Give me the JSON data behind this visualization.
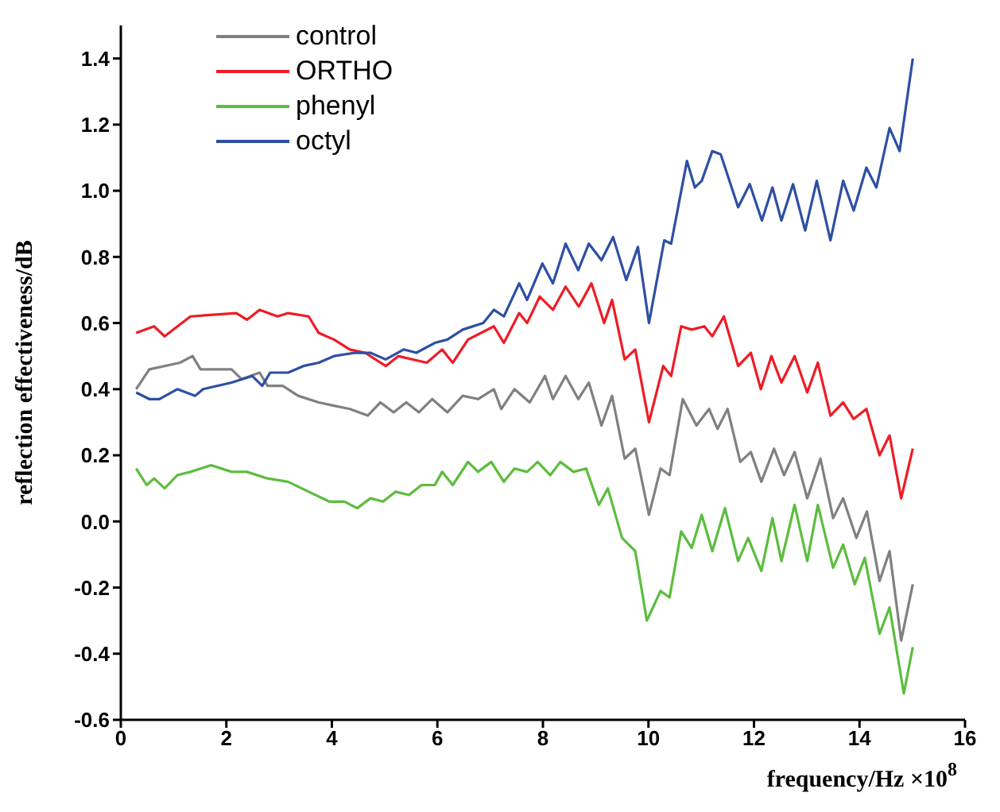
{
  "chart_data": {
    "type": "line",
    "xlabel": "frequency/Hz ×10$^{8}$",
    "ylabel": "reflection effectiveness/dB",
    "xlim": [
      0,
      16
    ],
    "xticks": [
      0,
      2,
      4,
      6,
      8,
      10,
      12,
      14,
      16
    ],
    "ylim": [
      -0.6,
      1.5
    ],
    "yticks": [
      {
        "value": -0.6,
        "label": "-0.6"
      },
      {
        "value": -0.4,
        "label": "-0.4"
      },
      {
        "value": -0.2,
        "label": "-0.2"
      },
      {
        "value": 0,
        "label": "0.0"
      },
      {
        "value": 0.2,
        "label": "0.2"
      },
      {
        "value": 0.4,
        "label": "0.4"
      },
      {
        "value": 0.6,
        "label": "0.6"
      },
      {
        "value": 0.8,
        "label": "0.8"
      },
      {
        "value": 1,
        "label": "1.0"
      },
      {
        "value": 1.2,
        "label": "1.2"
      },
      {
        "value": 1.4,
        "label": "1.4"
      }
    ],
    "grid": false,
    "legend": "top left",
    "marker": "none",
    "line_style": "solid",
    "series": [
      {
        "name": "control",
        "color": "#808080",
        "x": [
          0.29,
          0.54,
          1.12,
          1.36,
          1.51,
          2.1,
          2.29,
          2.63,
          2.78,
          3.07,
          3.36,
          3.75,
          4.04,
          4.34,
          4.68,
          4.92,
          5.17,
          5.41,
          5.65,
          5.9,
          6.19,
          6.48,
          6.77,
          7.07,
          7.21,
          7.46,
          7.75,
          8.04,
          8.19,
          8.43,
          8.67,
          8.87,
          9.11,
          9.31,
          9.55,
          9.75,
          10.01,
          10.23,
          10.4,
          10.65,
          10.91,
          11.15,
          11.31,
          11.5,
          11.74,
          11.94,
          12.14,
          12.38,
          12.57,
          12.77,
          13.01,
          13.26,
          13.5,
          13.69,
          13.94,
          14.14,
          14.38,
          14.57,
          14.79,
          15.01
        ],
        "values": [
          0.4,
          0.46,
          0.48,
          0.5,
          0.46,
          0.46,
          0.43,
          0.45,
          0.41,
          0.41,
          0.38,
          0.36,
          0.35,
          0.34,
          0.32,
          0.36,
          0.33,
          0.36,
          0.33,
          0.37,
          0.33,
          0.38,
          0.37,
          0.4,
          0.34,
          0.4,
          0.36,
          0.44,
          0.37,
          0.44,
          0.37,
          0.42,
          0.29,
          0.38,
          0.19,
          0.22,
          0.02,
          0.16,
          0.14,
          0.37,
          0.29,
          0.34,
          0.28,
          0.34,
          0.18,
          0.21,
          0.12,
          0.22,
          0.14,
          0.21,
          0.07,
          0.19,
          0.01,
          0.07,
          -0.05,
          0.03,
          -0.18,
          -0.09,
          -0.36,
          -0.19
        ]
      },
      {
        "name": "ORTHO",
        "color": "#ee1c25",
        "x": [
          0.29,
          0.63,
          0.83,
          1.32,
          2.19,
          2.39,
          2.63,
          2.97,
          3.17,
          3.56,
          3.75,
          4.04,
          4.34,
          4.63,
          5.02,
          5.26,
          5.8,
          6.09,
          6.29,
          6.58,
          7.07,
          7.26,
          7.55,
          7.7,
          7.94,
          8.19,
          8.43,
          8.68,
          8.92,
          9.16,
          9.31,
          9.55,
          9.75,
          10.01,
          10.28,
          10.43,
          10.62,
          10.82,
          11.06,
          11.21,
          11.43,
          11.7,
          11.94,
          12.13,
          12.33,
          12.52,
          12.77,
          13.01,
          13.21,
          13.45,
          13.69,
          13.89,
          14.13,
          14.38,
          14.57,
          14.79,
          15.01
        ],
        "values": [
          0.57,
          0.59,
          0.56,
          0.62,
          0.63,
          0.61,
          0.64,
          0.62,
          0.63,
          0.62,
          0.57,
          0.55,
          0.52,
          0.51,
          0.47,
          0.5,
          0.48,
          0.52,
          0.48,
          0.55,
          0.59,
          0.54,
          0.63,
          0.6,
          0.68,
          0.64,
          0.71,
          0.65,
          0.72,
          0.6,
          0.67,
          0.49,
          0.52,
          0.3,
          0.47,
          0.44,
          0.59,
          0.58,
          0.59,
          0.56,
          0.62,
          0.47,
          0.51,
          0.4,
          0.5,
          0.42,
          0.5,
          0.39,
          0.48,
          0.32,
          0.36,
          0.31,
          0.34,
          0.2,
          0.26,
          0.07,
          0.22
        ]
      },
      {
        "name": "phenyl",
        "color": "#5cbd3e",
        "x": [
          0.29,
          0.49,
          0.63,
          0.83,
          1.07,
          1.32,
          1.71,
          2.1,
          2.39,
          2.78,
          3.17,
          3.56,
          3.95,
          4.24,
          4.48,
          4.73,
          4.97,
          5.21,
          5.46,
          5.7,
          5.95,
          6.09,
          6.29,
          6.58,
          6.77,
          7.02,
          7.26,
          7.46,
          7.7,
          7.9,
          8.14,
          8.33,
          8.58,
          8.82,
          9.06,
          9.23,
          9.5,
          9.75,
          9.97,
          10.23,
          10.4,
          10.62,
          10.82,
          11.01,
          11.21,
          11.45,
          11.7,
          11.89,
          12.14,
          12.35,
          12.52,
          12.77,
          13.01,
          13.21,
          13.5,
          13.69,
          13.91,
          14.1,
          14.38,
          14.57,
          14.84,
          15.01
        ],
        "values": [
          0.16,
          0.11,
          0.13,
          0.1,
          0.14,
          0.15,
          0.17,
          0.15,
          0.15,
          0.13,
          0.12,
          0.09,
          0.06,
          0.06,
          0.04,
          0.07,
          0.06,
          0.09,
          0.08,
          0.11,
          0.11,
          0.15,
          0.11,
          0.18,
          0.15,
          0.18,
          0.12,
          0.16,
          0.15,
          0.18,
          0.14,
          0.18,
          0.15,
          0.16,
          0.05,
          0.1,
          -0.05,
          -0.09,
          -0.3,
          -0.21,
          -0.23,
          -0.03,
          -0.08,
          0.02,
          -0.09,
          0.04,
          -0.12,
          -0.05,
          -0.15,
          0.01,
          -0.12,
          0.05,
          -0.12,
          0.05,
          -0.14,
          -0.07,
          -0.19,
          -0.11,
          -0.34,
          -0.26,
          -0.52,
          -0.38
        ]
      },
      {
        "name": "octyl",
        "color": "#2e4fa3",
        "x": [
          0.29,
          0.54,
          0.73,
          1.07,
          1.41,
          1.56,
          2.1,
          2.49,
          2.68,
          2.83,
          3.17,
          3.46,
          3.75,
          4.04,
          4.44,
          4.73,
          5.02,
          5.36,
          5.6,
          5.95,
          6.19,
          6.48,
          6.87,
          7.07,
          7.26,
          7.55,
          7.7,
          7.99,
          8.19,
          8.43,
          8.67,
          8.87,
          9.11,
          9.33,
          9.58,
          9.8,
          10.01,
          10.3,
          10.43,
          10.73,
          10.88,
          11.01,
          11.21,
          11.37,
          11.7,
          11.92,
          12.15,
          12.35,
          12.52,
          12.74,
          12.97,
          13.19,
          13.45,
          13.69,
          13.89,
          14.13,
          14.32,
          14.57,
          14.76,
          15.01
        ],
        "values": [
          0.39,
          0.37,
          0.37,
          0.4,
          0.38,
          0.4,
          0.42,
          0.44,
          0.41,
          0.45,
          0.45,
          0.47,
          0.48,
          0.5,
          0.51,
          0.51,
          0.49,
          0.52,
          0.51,
          0.54,
          0.55,
          0.58,
          0.6,
          0.64,
          0.62,
          0.72,
          0.67,
          0.78,
          0.72,
          0.84,
          0.76,
          0.84,
          0.79,
          0.86,
          0.73,
          0.83,
          0.6,
          0.85,
          0.84,
          1.09,
          1.01,
          1.03,
          1.12,
          1.11,
          0.95,
          1.02,
          0.91,
          1.01,
          0.91,
          1.02,
          0.88,
          1.03,
          0.85,
          1.03,
          0.94,
          1.07,
          1.01,
          1.19,
          1.12,
          1.4
        ]
      }
    ]
  }
}
